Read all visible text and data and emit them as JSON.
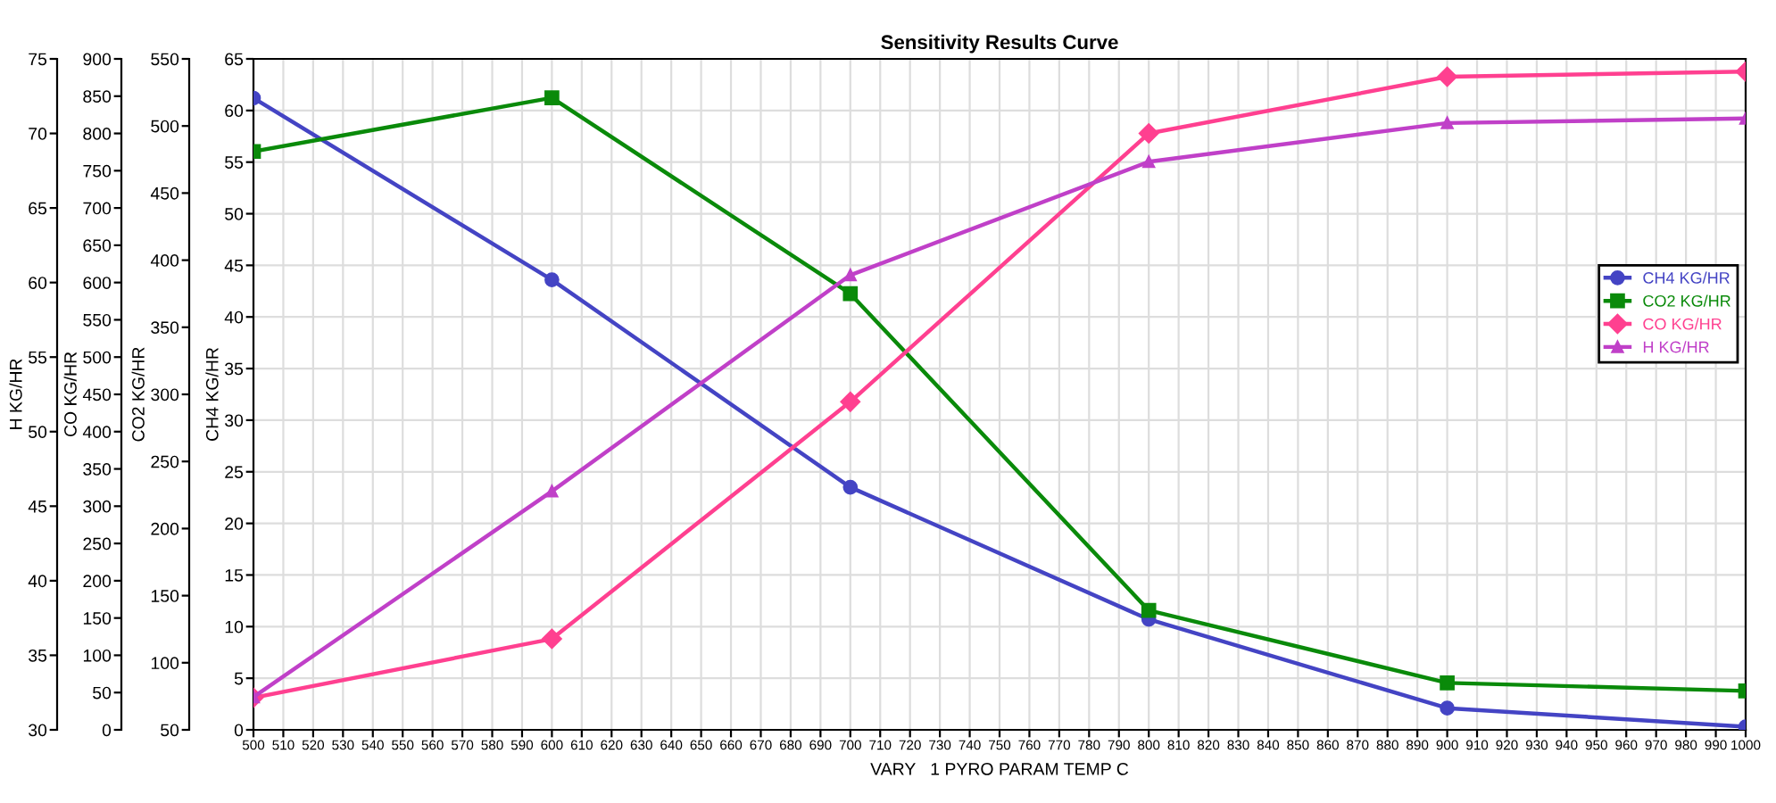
{
  "chart_data": [
    {
      "type": "line",
      "title": "Sensitivity Results Curve",
      "xlabel": "VARY   1 PYRO PARAM TEMP C",
      "ylabel": "CH4 KG/HR",
      "y2label": "CO2 KG/HR",
      "y3label": "CO KG/HR",
      "x": [
        500,
        600,
        700,
        800,
        900,
        1000
      ],
      "series": [
        {
          "name": "CH4 KG/HR",
          "color": "#4444c4",
          "marker": "circle",
          "values": [
            61.2,
            43.6,
            23.5,
            10.7,
            2.1,
            0.3
          ]
        },
        {
          "name": "CO2 KG/HR",
          "color": "#0a8a0a",
          "marker": "square",
          "axis": "y2",
          "values": [
            481,
            521,
            375,
            139,
            85,
            79
          ]
        },
        {
          "name": "CO KG/HR",
          "color": "#ff4090",
          "marker": "diamond",
          "axis": "y3",
          "values": [
            43,
            122,
            440,
            800,
            876,
            883
          ]
        }
      ],
      "xlim": [
        500,
        1000
      ],
      "xticks": [
        500,
        510,
        520,
        530,
        540,
        550,
        560,
        570,
        580,
        590,
        600,
        610,
        620,
        630,
        640,
        650,
        660,
        670,
        680,
        690,
        700,
        710,
        720,
        730,
        740,
        750,
        760,
        770,
        780,
        790,
        800,
        810,
        820,
        830,
        840,
        850,
        860,
        870,
        880,
        890,
        900,
        910,
        920,
        930,
        940,
        950,
        960,
        970,
        980,
        990,
        1000
      ],
      "ylim": [
        0,
        65
      ],
      "yticks": [
        0,
        5,
        10,
        15,
        20,
        25,
        30,
        35,
        40,
        45,
        50,
        55,
        60,
        65
      ],
      "y2lim": [
        50,
        550
      ],
      "y2ticks": [
        50,
        100,
        150,
        200,
        250,
        300,
        350,
        400,
        450,
        500,
        550
      ],
      "y3lim": [
        0,
        900
      ],
      "y3ticks": [
        0,
        50,
        100,
        150,
        200,
        250,
        300,
        350,
        400,
        450,
        500,
        550,
        600,
        650,
        700,
        750,
        800,
        850,
        900
      ],
      "grid": true,
      "legend": "right",
      "line_style": "solid"
    },
    {
      "type": "line",
      "ylabel": "H KG/HR",
      "x": [
        500,
        600,
        700,
        800,
        900,
        1000
      ],
      "series": [
        {
          "name": "H KG/HR",
          "color": "#c040c8",
          "marker": "triangle",
          "values": [
            32.2,
            46.0,
            60.5,
            68.1,
            70.7,
            71.0
          ]
        }
      ],
      "xlim": [
        500,
        1000
      ],
      "ylim": [
        30,
        75
      ],
      "yticks": [
        30,
        35,
        40,
        45,
        50,
        55,
        60,
        65,
        70,
        75
      ],
      "tick_labels": "y",
      "line_style": "solid"
    }
  ]
}
